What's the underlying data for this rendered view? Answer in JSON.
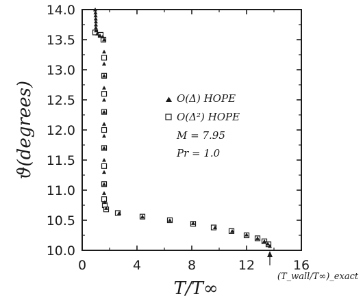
{
  "chart_data": {
    "type": "scatter",
    "title": "",
    "xlabel": "T/T∞",
    "ylabel": "ϑ(degrees)",
    "xlim": [
      0,
      16
    ],
    "ylim": [
      10.0,
      14.0
    ],
    "x_ticks": [
      "0",
      "4",
      "8",
      "12",
      "16"
    ],
    "y_ticks": [
      "10.0",
      "10.5",
      "11.0",
      "11.5",
      "12.0",
      "12.5",
      "13.0",
      "13.5",
      "14.0"
    ],
    "grid": false,
    "legend_position": "center-right",
    "series": [
      {
        "name": "O(Δ) HOPE",
        "marker": "triangle-filled",
        "points": [
          [
            0.95,
            14.0
          ],
          [
            0.97,
            13.95
          ],
          [
            0.98,
            13.9
          ],
          [
            0.99,
            13.85
          ],
          [
            1.0,
            13.8
          ],
          [
            1.0,
            13.75
          ],
          [
            1.0,
            13.7
          ],
          [
            1.01,
            13.65
          ],
          [
            1.1,
            13.6
          ],
          [
            1.3,
            13.57
          ],
          [
            1.5,
            13.55
          ],
          [
            1.6,
            13.5
          ],
          [
            1.6,
            13.3
          ],
          [
            1.6,
            13.1
          ],
          [
            1.6,
            12.9
          ],
          [
            1.6,
            12.7
          ],
          [
            1.6,
            12.5
          ],
          [
            1.6,
            12.3
          ],
          [
            1.6,
            12.1
          ],
          [
            1.6,
            11.9
          ],
          [
            1.6,
            11.7
          ],
          [
            1.6,
            11.5
          ],
          [
            1.6,
            11.3
          ],
          [
            1.6,
            11.1
          ],
          [
            1.6,
            10.95
          ],
          [
            1.65,
            10.8
          ],
          [
            1.75,
            10.7
          ],
          [
            2.7,
            10.62
          ],
          [
            4.4,
            10.56
          ],
          [
            6.4,
            10.5
          ],
          [
            8.1,
            10.45
          ],
          [
            9.7,
            10.38
          ],
          [
            10.95,
            10.32
          ],
          [
            12.0,
            10.26
          ],
          [
            12.8,
            10.2
          ],
          [
            13.3,
            10.15
          ],
          [
            13.55,
            10.11
          ],
          [
            13.7,
            10.07
          ]
        ]
      },
      {
        "name": "O(Δ²) HOPE",
        "marker": "square-open",
        "points": [
          [
            0.95,
            13.62
          ],
          [
            1.35,
            13.58
          ],
          [
            1.55,
            13.5
          ],
          [
            1.6,
            13.2
          ],
          [
            1.6,
            12.9
          ],
          [
            1.6,
            12.6
          ],
          [
            1.6,
            12.3
          ],
          [
            1.6,
            12.0
          ],
          [
            1.6,
            11.7
          ],
          [
            1.6,
            11.4
          ],
          [
            1.6,
            11.1
          ],
          [
            1.6,
            10.85
          ],
          [
            1.65,
            10.75
          ],
          [
            1.75,
            10.68
          ],
          [
            2.6,
            10.62
          ],
          [
            4.4,
            10.56
          ],
          [
            6.4,
            10.5
          ],
          [
            8.1,
            10.44
          ],
          [
            9.6,
            10.38
          ],
          [
            10.9,
            10.32
          ],
          [
            12.0,
            10.25
          ],
          [
            12.8,
            10.2
          ],
          [
            13.3,
            10.15
          ],
          [
            13.6,
            10.1
          ]
        ]
      }
    ],
    "legend": [
      "O(Δ) HOPE",
      "O(Δ²) HOPE"
    ],
    "annotations": [
      "M = 7.95",
      "Pr = 1.0",
      "(T_wall/T∞)_exact"
    ],
    "exact_marker_x": 13.7
  }
}
